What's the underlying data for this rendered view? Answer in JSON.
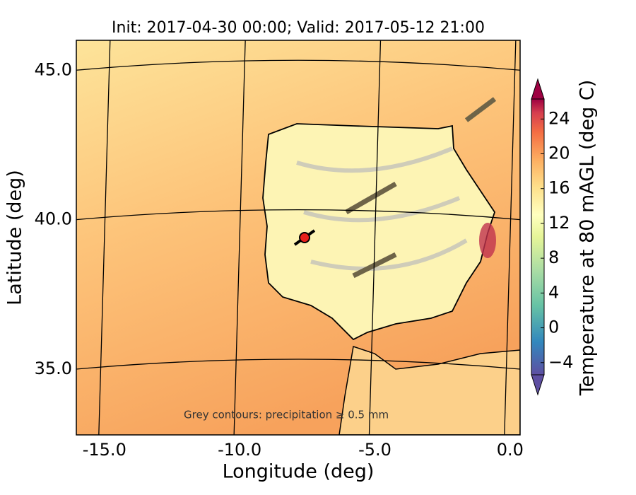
{
  "chart_data": {
    "type": "map",
    "title": "Init: 2017-04-30 00:00; Valid: 2017-05-12 21:00",
    "xlabel": "Longitude (deg)",
    "ylabel": "Latitude (deg)",
    "annotation": "Grey contours: precipitation ≥ 0.5 mm",
    "xlim": [
      -16.04,
      0.37
    ],
    "ylim": [
      32.8,
      46.0
    ],
    "xticks": [
      {
        "value": -15,
        "label": "-15.0"
      },
      {
        "value": -10,
        "label": "-10.0"
      },
      {
        "value": -5,
        "label": "-5.0"
      },
      {
        "value": 0,
        "label": "0.0"
      }
    ],
    "yticks": [
      {
        "value": 35,
        "label": "35.0"
      },
      {
        "value": 40,
        "label": "40.0"
      },
      {
        "value": 45,
        "label": "45.0"
      }
    ],
    "marker": {
      "lon": -7.6,
      "lat": 39.4,
      "color": "#e8221c"
    },
    "colorbar": {
      "label": "Temperature at 80 mAGL (deg C)",
      "lim": [
        -5.4,
        26.3
      ],
      "ticks": [
        {
          "value": -4,
          "label": "−4"
        },
        0,
        4,
        8,
        12,
        16,
        20,
        24
      ]
    }
  }
}
